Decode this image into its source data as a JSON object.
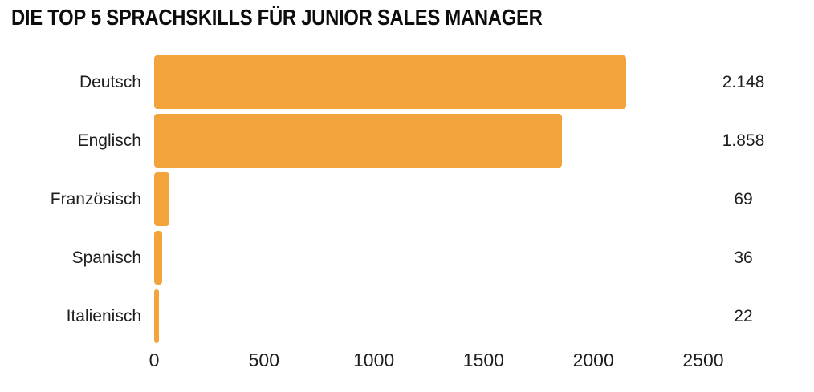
{
  "title": "DIE TOP 5 SPRACHSKILLS FÜR JUNIOR SALES MANAGER",
  "colors": {
    "bar": "#F2A33C",
    "title_text": "#0d0d0d",
    "label_text": "#1d1d1d",
    "background": "#FFFFFF"
  },
  "chart_data": {
    "type": "bar",
    "orientation": "horizontal",
    "title": "DIE TOP 5 SPRACHSKILLS FÜR JUNIOR SALES MANAGER",
    "categories": [
      "Deutsch",
      "Englisch",
      "Französisch",
      "Spanisch",
      "Italienisch"
    ],
    "values": [
      2148,
      1858,
      69,
      36,
      22
    ],
    "value_labels": [
      "2.148",
      "1.858",
      "69",
      "36",
      "22"
    ],
    "xlabel": "",
    "ylabel": "",
    "xlim": [
      0,
      2500
    ],
    "x_ticks": [
      0,
      500,
      1000,
      1500,
      2000,
      2500
    ],
    "x_tick_labels": [
      "0",
      "500",
      "1000",
      "1500",
      "2000",
      "2500"
    ],
    "grid": false,
    "legend": false,
    "bar_color": "#F2A33C"
  }
}
